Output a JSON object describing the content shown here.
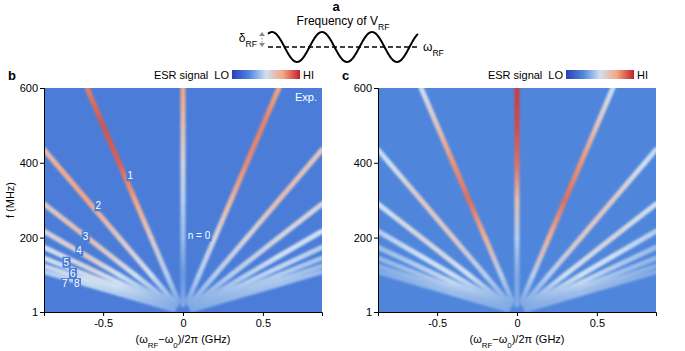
{
  "panel_a": {
    "label": "a",
    "title": [
      "Frequency of V",
      "RF"
    ],
    "amplitude_label": [
      "δ",
      "RF"
    ],
    "carrier_label": [
      "ω",
      "RF"
    ]
  },
  "chart_data": [
    {
      "type": "line",
      "panel_label": "b",
      "colorbar_title": "ESR signal",
      "tag": "Exp.",
      "x_label": [
        "(ω",
        "RF",
        "−ω",
        "0",
        ")/2π (GHz)"
      ],
      "y_label": "f (MHz)",
      "xlim": [
        -0.87,
        0.87
      ],
      "xticks": [
        -0.5,
        0,
        0.5
      ],
      "ylim": [
        1,
        600
      ],
      "yticks": [
        1,
        200,
        400,
        600
      ],
      "color_range": [
        0,
        1
      ],
      "color_ticks": [
        {
          "value": 0,
          "label": "LO"
        },
        {
          "value": 1,
          "label": "HI"
        }
      ],
      "background_signal": 0.22,
      "series": [
        {
          "x": [
            0,
            0,
            0,
            0,
            0,
            0,
            0
          ],
          "values": [
            20,
            100,
            200,
            300,
            400,
            500,
            600
          ],
          "signal": [
            0.35,
            0.3,
            0.4,
            0.45,
            0.55,
            0.65,
            0.75
          ]
        },
        {
          "x": [
            -0.03,
            -0.1,
            -0.2,
            -0.3,
            -0.4,
            -0.5,
            -0.6
          ],
          "values": [
            30,
            100,
            200,
            300,
            400,
            500,
            600
          ],
          "signal": [
            0.35,
            0.45,
            0.6,
            0.75,
            0.88,
            0.9,
            0.82
          ]
        },
        {
          "x": [
            0.03,
            0.1,
            0.2,
            0.3,
            0.4,
            0.5,
            0.6
          ],
          "values": [
            30,
            100,
            200,
            300,
            400,
            500,
            600
          ],
          "signal": [
            0.35,
            0.45,
            0.55,
            0.68,
            0.8,
            0.82,
            0.75
          ]
        },
        {
          "x": [
            -0.04,
            -0.2,
            -0.4,
            -0.6,
            -0.8,
            -0.87
          ],
          "values": [
            20,
            100,
            200,
            300,
            400,
            435
          ],
          "signal": [
            0.35,
            0.5,
            0.6,
            0.75,
            0.7,
            0.65
          ]
        },
        {
          "x": [
            0.04,
            0.2,
            0.4,
            0.6,
            0.8,
            0.87
          ],
          "values": [
            20,
            100,
            200,
            300,
            400,
            435
          ],
          "signal": [
            0.35,
            0.45,
            0.55,
            0.65,
            0.62,
            0.6
          ]
        },
        {
          "x": [
            -0.06,
            -0.3,
            -0.6,
            -0.87
          ],
          "values": [
            20,
            100,
            200,
            290
          ],
          "signal": [
            0.35,
            0.5,
            0.65,
            0.6
          ]
        },
        {
          "x": [
            0.06,
            0.3,
            0.6,
            0.87
          ],
          "values": [
            20,
            100,
            200,
            290
          ],
          "signal": [
            0.35,
            0.45,
            0.55,
            0.55
          ]
        },
        {
          "x": [
            -0.06,
            -0.4,
            -0.6,
            -0.87
          ],
          "values": [
            15,
            100,
            150,
            217
          ],
          "signal": [
            0.35,
            0.5,
            0.6,
            0.55
          ]
        },
        {
          "x": [
            0.06,
            0.4,
            0.6,
            0.87
          ],
          "values": [
            15,
            100,
            150,
            217
          ],
          "signal": [
            0.35,
            0.45,
            0.5,
            0.5
          ]
        },
        {
          "x": [
            -0.06,
            -0.4,
            -0.6,
            -0.87
          ],
          "values": [
            12,
            80,
            120,
            174
          ],
          "signal": [
            0.35,
            0.5,
            0.55,
            0.5
          ]
        },
        {
          "x": [
            0.06,
            0.4,
            0.6,
            0.87
          ],
          "values": [
            12,
            80,
            120,
            174
          ],
          "signal": [
            0.35,
            0.45,
            0.48,
            0.45
          ]
        },
        {
          "x": [
            -0.06,
            -0.42,
            -0.6,
            -0.87
          ],
          "values": [
            10,
            70,
            100,
            145
          ],
          "signal": [
            0.35,
            0.5,
            0.52,
            0.5
          ]
        },
        {
          "x": [
            0.06,
            0.42,
            0.6,
            0.87
          ],
          "values": [
            10,
            70,
            100,
            145
          ],
          "signal": [
            0.35,
            0.42,
            0.45,
            0.42
          ]
        },
        {
          "x": [
            -0.056,
            -0.42,
            -0.602,
            -0.868
          ],
          "values": [
            8,
            60,
            86,
            124
          ],
          "signal": [
            0.35,
            0.48,
            0.5,
            0.48
          ]
        },
        {
          "x": [
            0.056,
            0.42,
            0.602,
            0.868
          ],
          "values": [
            8,
            60,
            86,
            124
          ],
          "signal": [
            0.35,
            0.42,
            0.44,
            0.4
          ]
        },
        {
          "x": [
            -0.064,
            -0.4,
            -0.6,
            -0.872
          ],
          "values": [
            8,
            50,
            75,
            109
          ],
          "signal": [
            0.35,
            0.45,
            0.48,
            0.45
          ]
        },
        {
          "x": [
            0.064,
            0.4,
            0.6,
            0.872
          ],
          "values": [
            8,
            50,
            75,
            109
          ],
          "signal": [
            0.35,
            0.4,
            0.42,
            0.4
          ]
        }
      ],
      "annotations": [
        {
          "text": "n = 0",
          "x": 0.1,
          "y": 205
        },
        {
          "text": "1",
          "x": -0.33,
          "y": 366
        },
        {
          "text": "2",
          "x": -0.53,
          "y": 285
        },
        {
          "text": "3",
          "x": -0.61,
          "y": 203
        },
        {
          "text": "4",
          "x": -0.65,
          "y": 165
        },
        {
          "text": "5",
          "x": -0.73,
          "y": 134
        },
        {
          "text": "6",
          "x": -0.69,
          "y": 104
        },
        {
          "text": "7",
          "x": -0.74,
          "y": 77
        },
        {
          "text": "8",
          "x": -0.665,
          "y": 77
        }
      ]
    },
    {
      "type": "line",
      "panel_label": "c",
      "colorbar_title": "ESR signal",
      "x_label": [
        "(ω",
        "RF",
        "−ω",
        "0",
        ")/2π (GHz)"
      ],
      "xlim": [
        -0.87,
        0.87
      ],
      "xticks": [
        -0.5,
        0,
        0.5
      ],
      "ylim": [
        1,
        600
      ],
      "yticks": [
        1,
        200,
        400,
        600
      ],
      "color_range": [
        0,
        1
      ],
      "color_ticks": [
        {
          "value": 0,
          "label": "LO"
        },
        {
          "value": 1,
          "label": "HI"
        }
      ],
      "background_signal": 0.25,
      "series": [
        {
          "x": [
            0,
            0,
            0,
            0,
            0,
            0,
            0
          ],
          "values": [
            20,
            100,
            200,
            300,
            400,
            500,
            600
          ],
          "signal": [
            0.35,
            0.35,
            0.45,
            0.65,
            0.85,
            0.92,
            0.95
          ]
        },
        {
          "x": [
            -0.03,
            -0.1,
            -0.2,
            -0.3,
            -0.4,
            -0.5,
            -0.6
          ],
          "values": [
            30,
            100,
            200,
            300,
            400,
            500,
            600
          ],
          "signal": [
            0.35,
            0.45,
            0.7,
            0.85,
            0.78,
            0.62,
            0.5
          ]
        },
        {
          "x": [
            0.03,
            0.1,
            0.2,
            0.3,
            0.4,
            0.5,
            0.6
          ],
          "values": [
            30,
            100,
            200,
            300,
            400,
            500,
            600
          ],
          "signal": [
            0.35,
            0.45,
            0.7,
            0.85,
            0.78,
            0.62,
            0.5
          ]
        },
        {
          "x": [
            -0.04,
            -0.2,
            -0.4,
            -0.6,
            -0.8,
            -0.87
          ],
          "values": [
            20,
            100,
            200,
            300,
            400,
            435
          ],
          "signal": [
            0.35,
            0.45,
            0.6,
            0.6,
            0.5,
            0.48
          ]
        },
        {
          "x": [
            0.04,
            0.2,
            0.4,
            0.6,
            0.8,
            0.87
          ],
          "values": [
            20,
            100,
            200,
            300,
            400,
            435
          ],
          "signal": [
            0.35,
            0.45,
            0.6,
            0.6,
            0.5,
            0.48
          ]
        },
        {
          "x": [
            -0.06,
            -0.3,
            -0.6,
            -0.87
          ],
          "values": [
            20,
            100,
            200,
            290
          ],
          "signal": [
            0.35,
            0.5,
            0.55,
            0.5
          ]
        },
        {
          "x": [
            0.06,
            0.3,
            0.6,
            0.87
          ],
          "values": [
            20,
            100,
            200,
            290
          ],
          "signal": [
            0.35,
            0.5,
            0.55,
            0.5
          ]
        },
        {
          "x": [
            -0.06,
            -0.4,
            -0.6,
            -0.87
          ],
          "values": [
            15,
            100,
            150,
            217
          ],
          "signal": [
            0.35,
            0.5,
            0.5,
            0.45
          ]
        },
        {
          "x": [
            0.06,
            0.4,
            0.6,
            0.87
          ],
          "values": [
            15,
            100,
            150,
            217
          ],
          "signal": [
            0.35,
            0.5,
            0.5,
            0.45
          ]
        },
        {
          "x": [
            -0.06,
            -0.4,
            -0.6,
            -0.87
          ],
          "values": [
            12,
            80,
            120,
            174
          ],
          "signal": [
            0.35,
            0.48,
            0.45,
            0.4
          ]
        },
        {
          "x": [
            0.06,
            0.4,
            0.6,
            0.87
          ],
          "values": [
            12,
            80,
            120,
            174
          ],
          "signal": [
            0.35,
            0.48,
            0.45,
            0.4
          ]
        },
        {
          "x": [
            -0.06,
            -0.42,
            -0.6,
            -0.87
          ],
          "values": [
            10,
            70,
            100,
            145
          ],
          "signal": [
            0.35,
            0.45,
            0.42,
            0.38
          ]
        },
        {
          "x": [
            0.06,
            0.42,
            0.6,
            0.87
          ],
          "values": [
            10,
            70,
            100,
            145
          ],
          "signal": [
            0.35,
            0.45,
            0.42,
            0.38
          ]
        },
        {
          "x": [
            -0.056,
            -0.42,
            -0.602,
            -0.868
          ],
          "values": [
            8,
            60,
            86,
            124
          ],
          "signal": [
            0.35,
            0.42,
            0.4,
            0.36
          ]
        },
        {
          "x": [
            0.056,
            0.42,
            0.602,
            0.868
          ],
          "values": [
            8,
            60,
            86,
            124
          ],
          "signal": [
            0.35,
            0.42,
            0.4,
            0.36
          ]
        },
        {
          "x": [
            -0.064,
            -0.4,
            -0.6,
            -0.872
          ],
          "values": [
            8,
            50,
            75,
            109
          ],
          "signal": [
            0.35,
            0.4,
            0.38,
            0.35
          ]
        },
        {
          "x": [
            0.064,
            0.4,
            0.6,
            0.872
          ],
          "values": [
            8,
            50,
            75,
            109
          ],
          "signal": [
            0.35,
            0.4,
            0.38,
            0.35
          ]
        }
      ]
    }
  ]
}
